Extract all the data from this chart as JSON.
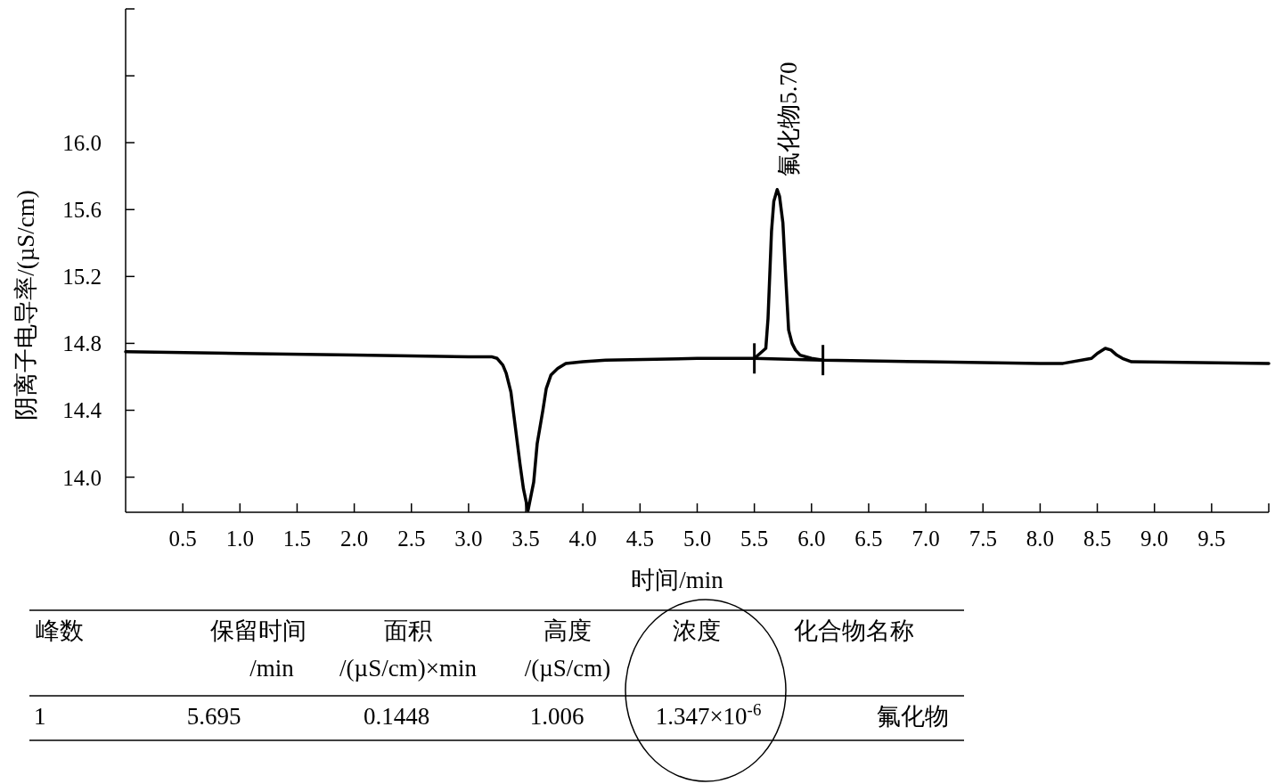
{
  "chart_data": {
    "type": "line",
    "xlabel": "时间/min",
    "ylabel": "阴离子电导率/(µS/cm)",
    "xlim": [
      0,
      10
    ],
    "ylim": [
      13.79,
      16.8
    ],
    "xticks": [
      {
        "value": 0.5,
        "label": "0.5"
      },
      {
        "value": 1,
        "label": "1.0"
      },
      {
        "value": 1.5,
        "label": "1.5"
      },
      {
        "value": 2,
        "label": "2.0"
      },
      {
        "value": 2.5,
        "label": "2.5"
      },
      {
        "value": 3,
        "label": "3.0"
      },
      {
        "value": 3.5,
        "label": "3.5"
      },
      {
        "value": 4,
        "label": "4.0"
      },
      {
        "value": 4.5,
        "label": "4.5"
      },
      {
        "value": 5,
        "label": "5.0"
      },
      {
        "value": 5.5,
        "label": "5.5"
      },
      {
        "value": 6,
        "label": "6.0"
      },
      {
        "value": 6.5,
        "label": "6.5"
      },
      {
        "value": 7,
        "label": "7.0"
      },
      {
        "value": 7.5,
        "label": "7.5"
      },
      {
        "value": 8,
        "label": "8.0"
      },
      {
        "value": 8.5,
        "label": "8.5"
      },
      {
        "value": 9,
        "label": "9.0"
      },
      {
        "value": 9.5,
        "label": "9.5"
      },
      {
        "value": 10,
        "label": null
      }
    ],
    "yticks": [
      {
        "value": 14,
        "label": "14.0"
      },
      {
        "value": 14.4,
        "label": "14.4"
      },
      {
        "value": 14.8,
        "label": "14.8"
      },
      {
        "value": 15.2,
        "label": "15.2"
      },
      {
        "value": 15.6,
        "label": "15.6"
      },
      {
        "value": 16,
        "label": "16.0"
      },
      {
        "value": 16.4,
        "label": null
      },
      {
        "value": 16.8,
        "label": null
      }
    ],
    "series": [
      {
        "color": "#000000",
        "x": [
          0,
          1,
          2,
          3,
          3.2,
          3.25,
          3.3,
          3.33,
          3.37,
          3.4,
          3.45,
          3.48,
          3.52,
          3.57,
          3.6,
          3.65,
          3.68,
          3.72,
          3.78,
          3.85,
          4,
          4.2,
          5,
          5.5,
          5.6,
          5.62,
          5.65,
          5.67,
          5.7,
          5.72,
          5.75,
          5.77,
          5.8,
          5.83,
          5.86,
          5.9,
          6,
          6.1,
          7,
          8,
          8.2,
          8.45,
          8.5,
          8.57,
          8.62,
          8.67,
          8.72,
          8.8,
          10
        ],
        "values": [
          14.75,
          14.74,
          14.73,
          14.72,
          14.72,
          14.71,
          14.67,
          14.62,
          14.51,
          14.35,
          14.08,
          13.93,
          13.8,
          13.97,
          14.2,
          14.4,
          14.53,
          14.61,
          14.65,
          14.68,
          14.69,
          14.7,
          14.71,
          14.71,
          14.77,
          14.95,
          15.47,
          15.65,
          15.72,
          15.68,
          15.52,
          15.25,
          14.88,
          14.8,
          14.76,
          14.73,
          14.71,
          14.7,
          14.69,
          14.68,
          14.68,
          14.71,
          14.74,
          14.77,
          14.76,
          14.73,
          14.71,
          14.69,
          14.68
        ]
      },
      {
        "color": "#000000",
        "x": [
          5.5,
          6.1
        ],
        "values": [
          14.71,
          14.7
        ]
      }
    ],
    "annotations": [
      {
        "text": "氟化物5.70",
        "x": 5.7,
        "y": 15.72
      },
      "峰数",
      "保留时间 /min",
      "面积 /(µS/cm)×min",
      "高度 /(µS/cm)",
      "浓度",
      "化合物名称",
      "1",
      "5.695",
      "0.1448",
      "1.006",
      "1.347×10$^{-6}$",
      "氟化物"
    ],
    "grid": false,
    "marker": "none",
    "line_style": "solid"
  }
}
